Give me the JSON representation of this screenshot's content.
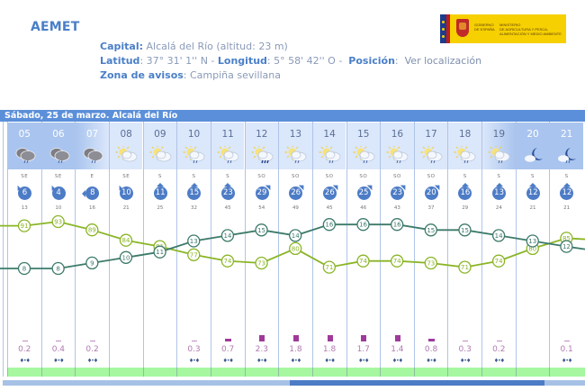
{
  "header": {
    "brand": "AEMET",
    "logo": {
      "line1a": "GOBIERNO",
      "line1b": "DE ESPAÑA",
      "line2a": "MINISTERIO",
      "line2b": "DE AGRICULTURA Y PESCA,",
      "line2c": "ALIMENTACIÓN Y MEDIO AMBIENTE"
    },
    "capital_label": "Capital:",
    "capital_value": "Alcalá del Río (altitud: 23 m)",
    "latitud_label": "Latitud",
    "latitud_value": ": 37° 31' 1'' N - ",
    "longitud_label": "Longitud",
    "longitud_value": ": 5° 58' 42'' O - ",
    "posicion_label": "Posición",
    "posicion_sep": ":",
    "posicion_link": "Ver localización",
    "zona_label": "Zona de avisos",
    "zona_value": ": Campiña sevillana"
  },
  "forecast": {
    "day_title": "Sábado, 25 de marzo. Alcalá del Río",
    "colors": {
      "day_bar": "#5b8fd9",
      "temp_line": "#3d7a6a",
      "humidity_line": "#8ab526",
      "precip_bar": "#a03a9a",
      "wind_badge": "#4d7cc6",
      "green_band": "#a6f7a0"
    },
    "hours": [
      {
        "hour": "05",
        "sky": "cloud-rain-night",
        "wind_dir": "SE",
        "wind": "6",
        "gust": "13",
        "temp": 8,
        "hum": 91,
        "precip": "0.2"
      },
      {
        "hour": "06",
        "sky": "cloud-rain-night",
        "wind_dir": "SE",
        "wind": "4",
        "gust": "10",
        "temp": 8,
        "hum": 93,
        "precip": "0.4"
      },
      {
        "hour": "07",
        "sky": "cloud-rain-night",
        "wind_dir": "E",
        "wind": "8",
        "gust": "16",
        "temp": 9,
        "hum": 89,
        "precip": "0.2"
      },
      {
        "hour": "08",
        "sky": "sun-cloud",
        "wind_dir": "SE",
        "wind": "10",
        "gust": "21",
        "temp": 10,
        "hum": 84,
        "precip": ""
      },
      {
        "hour": "09",
        "sky": "sun-cloud",
        "wind_dir": "S",
        "wind": "11",
        "gust": "25",
        "temp": 11,
        "hum": 81,
        "precip": ""
      },
      {
        "hour": "10",
        "sky": "sun-cloud-rain",
        "wind_dir": "S",
        "wind": "15",
        "gust": "32",
        "temp": 13,
        "hum": 77,
        "precip": "0.3"
      },
      {
        "hour": "11",
        "sky": "sun-cloud-rain",
        "wind_dir": "S",
        "wind": "23",
        "gust": "45",
        "temp": 14,
        "hum": 74,
        "precip": "0.7"
      },
      {
        "hour": "12",
        "sky": "sun-cloud-heavy-rain",
        "wind_dir": "SO",
        "wind": "29",
        "gust": "54",
        "temp": 15,
        "hum": 73,
        "precip": "2.3"
      },
      {
        "hour": "13",
        "sky": "sun-cloud-rain",
        "wind_dir": "SO",
        "wind": "26",
        "gust": "49",
        "temp": 14,
        "hum": 80,
        "precip": "1.8"
      },
      {
        "hour": "14",
        "sky": "sun-cloud-rain",
        "wind_dir": "SO",
        "wind": "26",
        "gust": "45",
        "temp": 16,
        "hum": 71,
        "precip": "1.8"
      },
      {
        "hour": "15",
        "sky": "sun-cloud-rain",
        "wind_dir": "SO",
        "wind": "25",
        "gust": "46",
        "temp": 16,
        "hum": 74,
        "precip": "1.7"
      },
      {
        "hour": "16",
        "sky": "sun-cloud-rain",
        "wind_dir": "SO",
        "wind": "23",
        "gust": "43",
        "temp": 16,
        "hum": 74,
        "precip": "1.4"
      },
      {
        "hour": "17",
        "sky": "sun-cloud-rain",
        "wind_dir": "SO",
        "wind": "20",
        "gust": "37",
        "temp": 15,
        "hum": 73,
        "precip": "0.8"
      },
      {
        "hour": "18",
        "sky": "sun-cloud-rain",
        "wind_dir": "S",
        "wind": "16",
        "gust": "29",
        "temp": 15,
        "hum": 71,
        "precip": "0.3"
      },
      {
        "hour": "19",
        "sky": "sun-cloud-rain",
        "wind_dir": "S",
        "wind": "13",
        "gust": "24",
        "temp": 14,
        "hum": 74,
        "precip": "0.2"
      },
      {
        "hour": "20",
        "sky": "moon-cloud",
        "wind_dir": "S",
        "wind": "12",
        "gust": "21",
        "temp": 13,
        "hum": 80,
        "precip": ""
      },
      {
        "hour": "21",
        "sky": "moon-cloud-rain",
        "wind_dir": "S",
        "wind": "12",
        "gust": "21",
        "temp": 12,
        "hum": 85,
        "precip": "0.1"
      }
    ],
    "scrollbar": {
      "thumb_start_pct": 49,
      "thumb_width_pct": 44
    }
  }
}
